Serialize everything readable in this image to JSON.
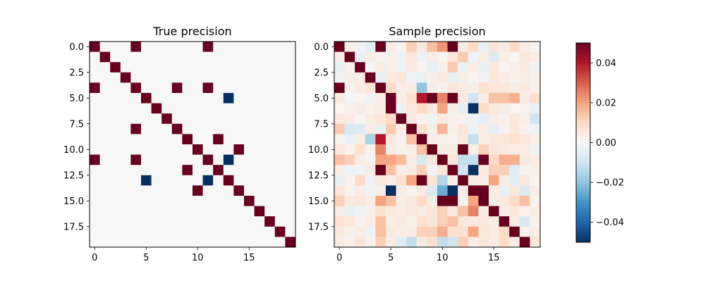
{
  "chart_data": [
    {
      "type": "heatmap",
      "title": "True precision",
      "n": 20,
      "xticks": [
        0,
        5,
        10,
        15
      ],
      "xtick_labels": [
        "0",
        "5",
        "10",
        "15"
      ],
      "yticks": [
        0,
        2.5,
        5,
        7.5,
        10,
        12.5,
        15,
        17.5
      ],
      "ytick_labels": [
        "0.0",
        "2.5",
        "5.0",
        "7.5",
        "10.0",
        "12.5",
        "15.0",
        "17.5"
      ],
      "vmin": -0.05,
      "vmax": 0.05,
      "values": [
        [
          0.05,
          0,
          0,
          0,
          0.05,
          0,
          0,
          0,
          0,
          0,
          0,
          0.05,
          0,
          0,
          0,
          0,
          0,
          0,
          0,
          0
        ],
        [
          0,
          0.05,
          0,
          0,
          0,
          0,
          0,
          0,
          0,
          0,
          0,
          0,
          0,
          0,
          0,
          0,
          0,
          0,
          0,
          0
        ],
        [
          0,
          0,
          0.05,
          0,
          0,
          0,
          0,
          0,
          0,
          0,
          0,
          0,
          0,
          0,
          0,
          0,
          0,
          0,
          0,
          0
        ],
        [
          0,
          0,
          0,
          0.05,
          0,
          0,
          0,
          0,
          0,
          0,
          0,
          0,
          0,
          0,
          0,
          0,
          0,
          0,
          0,
          0
        ],
        [
          0.05,
          0,
          0,
          0,
          0.05,
          0,
          0,
          0,
          0.05,
          0,
          0,
          0.05,
          0,
          0,
          0,
          0,
          0,
          0,
          0,
          0
        ],
        [
          0,
          0,
          0,
          0,
          0,
          0.05,
          0,
          0,
          0,
          0,
          0,
          0,
          0,
          -0.05,
          0,
          0,
          0,
          0,
          0,
          0
        ],
        [
          0,
          0,
          0,
          0,
          0,
          0,
          0.05,
          0,
          0,
          0,
          0,
          0,
          0,
          0,
          0,
          0,
          0,
          0,
          0,
          0
        ],
        [
          0,
          0,
          0,
          0,
          0,
          0,
          0,
          0.05,
          0,
          0,
          0,
          0,
          0,
          0,
          0,
          0,
          0,
          0,
          0,
          0
        ],
        [
          0,
          0,
          0,
          0,
          0.05,
          0,
          0,
          0,
          0.05,
          0,
          0,
          0,
          0,
          0,
          0,
          0,
          0,
          0,
          0,
          0
        ],
        [
          0,
          0,
          0,
          0,
          0,
          0,
          0,
          0,
          0,
          0.05,
          0,
          0,
          0.05,
          0,
          0,
          0,
          0,
          0,
          0,
          0
        ],
        [
          0,
          0,
          0,
          0,
          0,
          0,
          0,
          0,
          0,
          0,
          0.05,
          0,
          0,
          0,
          0.05,
          0,
          0,
          0,
          0,
          0
        ],
        [
          0.05,
          0,
          0,
          0,
          0.05,
          0,
          0,
          0,
          0,
          0,
          0,
          0.05,
          0,
          -0.05,
          0,
          0,
          0,
          0,
          0,
          0
        ],
        [
          0,
          0,
          0,
          0,
          0,
          0,
          0,
          0,
          0,
          0.05,
          0,
          0,
          0.05,
          0,
          0,
          0,
          0,
          0,
          0,
          0
        ],
        [
          0,
          0,
          0,
          0,
          0,
          -0.05,
          0,
          0,
          0,
          0,
          0,
          -0.05,
          0,
          0.05,
          0,
          0,
          0,
          0,
          0,
          0
        ],
        [
          0,
          0,
          0,
          0,
          0,
          0,
          0,
          0,
          0,
          0,
          0.05,
          0,
          0,
          0,
          0.05,
          0,
          0,
          0,
          0,
          0
        ],
        [
          0,
          0,
          0,
          0,
          0,
          0,
          0,
          0,
          0,
          0,
          0,
          0,
          0,
          0,
          0,
          0.05,
          0,
          0,
          0,
          0
        ],
        [
          0,
          0,
          0,
          0,
          0,
          0,
          0,
          0,
          0,
          0,
          0,
          0,
          0,
          0,
          0,
          0,
          0.05,
          0,
          0,
          0
        ],
        [
          0,
          0,
          0,
          0,
          0,
          0,
          0,
          0,
          0,
          0,
          0,
          0,
          0,
          0,
          0,
          0,
          0,
          0.05,
          0,
          0
        ],
        [
          0,
          0,
          0,
          0,
          0,
          0,
          0,
          0,
          0,
          0,
          0,
          0,
          0,
          0,
          0,
          0,
          0,
          0,
          0.05,
          0
        ],
        [
          0,
          0,
          0,
          0,
          0,
          0,
          0,
          0,
          0,
          0,
          0,
          0,
          0,
          0,
          0,
          0,
          0,
          0,
          0,
          0.05
        ]
      ]
    },
    {
      "type": "heatmap",
      "title": "Sample precision",
      "n": 20,
      "xticks": [
        0,
        5,
        10,
        15
      ],
      "xtick_labels": [
        "0",
        "5",
        "10",
        "15"
      ],
      "yticks": [
        0,
        2.5,
        5,
        7.5,
        10,
        12.5,
        15,
        17.5
      ],
      "ytick_labels": [
        "0.0",
        "2.5",
        "5.0",
        "7.5",
        "10.0",
        "12.5",
        "15.0",
        "17.5"
      ],
      "vmin": -0.05,
      "vmax": 0.05,
      "values": [
        [
          0.05,
          0.003,
          -0.002,
          -0.005,
          0.05,
          0.004,
          0.001,
          0.012,
          0.005,
          0.015,
          0.022,
          0.05,
          0.004,
          0.01,
          -0.004,
          0.006,
          0.004,
          0.01,
          0.004,
          0.001
        ],
        [
          0.003,
          0.05,
          -0.004,
          0.004,
          0.002,
          0.003,
          -0.003,
          0.006,
          -0.003,
          0.004,
          0.001,
          0.006,
          0.013,
          -0.002,
          0.004,
          -0.007,
          0.003,
          0.001,
          0.006,
          0.004
        ],
        [
          -0.004,
          0.002,
          0.05,
          -0.001,
          0.004,
          0.003,
          -0.002,
          0.005,
          0.001,
          -0.004,
          0.003,
          0.013,
          -0.004,
          0.004,
          -0.004,
          0.006,
          0.001,
          0.003,
          0.005,
          -0.002
        ],
        [
          -0.002,
          0.004,
          0.004,
          0.05,
          -0.004,
          0.005,
          0.006,
          -0.002,
          -0.004,
          0.003,
          0.005,
          -0.004,
          0.004,
          0.001,
          -0.002,
          0.006,
          0.004,
          0.002,
          0.004,
          0.003
        ],
        [
          0.05,
          0.002,
          0.004,
          0.006,
          0.05,
          0.01,
          0.004,
          0.004,
          -0.02,
          0.004,
          0.002,
          0.006,
          0.004,
          0.003,
          0.008,
          0.006,
          0.006,
          0.004,
          0.005,
          0.002
        ],
        [
          0.004,
          -0.001,
          0.001,
          -0.002,
          0.004,
          0.05,
          0.004,
          0.008,
          0.04,
          0.05,
          0.025,
          0.05,
          0.005,
          -0.01,
          0.004,
          0.015,
          0.015,
          0.018,
          0.004,
          0.008
        ],
        [
          0.001,
          0.003,
          0.004,
          0.002,
          0.004,
          0.05,
          -0.003,
          0.006,
          0.01,
          0.005,
          0.02,
          0.003,
          -0.005,
          -0.05,
          0.01,
          0.005,
          0.004,
          0.001,
          0.002,
          -0.004
        ],
        [
          0.005,
          0.004,
          0.001,
          0.004,
          0.006,
          0.01,
          0.05,
          0.005,
          0.002,
          -0.002,
          0.005,
          0.003,
          0.002,
          -0.002,
          -0.005,
          0.004,
          0.002,
          0.006,
          0.003,
          -0.01
        ],
        [
          0.013,
          -0.008,
          -0.007,
          0.004,
          -0.004,
          0.013,
          0.004,
          0.05,
          0.008,
          0.003,
          0.017,
          0.003,
          0.006,
          -0.003,
          0.004,
          -0.005,
          0.002,
          0.006,
          0.002,
          -0.002
        ],
        [
          0.002,
          -0.004,
          0.004,
          -0.016,
          0.04,
          0.005,
          0.002,
          0.015,
          0.05,
          0.004,
          0.003,
          0.002,
          0.006,
          -0.012,
          0.004,
          0.006,
          0.006,
          0.008,
          0.006,
          0.003
        ],
        [
          0.006,
          0.002,
          0.008,
          0.002,
          0.025,
          0.004,
          0.002,
          0.003,
          0.015,
          0.05,
          0.004,
          0.004,
          0.05,
          0.003,
          0.012,
          0.006,
          0.005,
          0.004,
          0.004,
          -0.002
        ],
        [
          0.015,
          0.012,
          0.004,
          0.002,
          0.02,
          0.02,
          0.016,
          0.004,
          -0.008,
          0.006,
          0.05,
          0.006,
          -0.012,
          -0.012,
          0.05,
          0.01,
          0.018,
          0.018,
          0.005,
          0.004
        ],
        [
          0.004,
          -0.003,
          -0.002,
          0.004,
          0.05,
          0.015,
          0.004,
          0.004,
          0.012,
          -0.002,
          0.006,
          0.05,
          -0.01,
          -0.05,
          0.005,
          0.012,
          0.012,
          -0.006,
          0.002,
          0.003
        ],
        [
          -0.004,
          0.002,
          0.01,
          -0.003,
          0.005,
          0.004,
          0.008,
          0.02,
          0.05,
          0.007,
          -0.015,
          0.003,
          0.05,
          0.004,
          0.004,
          0.02,
          0.004,
          -0.006,
          0.006,
          0.001
        ],
        [
          0.006,
          0.001,
          0.004,
          -0.002,
          0.003,
          -0.05,
          0.004,
          0.002,
          0.004,
          -0.008,
          -0.025,
          -0.05,
          0.004,
          0.05,
          0.05,
          0.004,
          -0.004,
          0.006,
          -0.007,
          0.004
        ],
        [
          0.012,
          0.005,
          0.006,
          0.004,
          0.02,
          0.015,
          0.004,
          0.005,
          0.01,
          0.004,
          0.05,
          0.05,
          0.002,
          0.02,
          0.05,
          0.004,
          0.005,
          0.01,
          0.015,
          0.002
        ],
        [
          0.004,
          -0.004,
          -0.002,
          0.003,
          0.008,
          0.005,
          0.004,
          0.006,
          0.004,
          0.006,
          0.012,
          0.006,
          0.015,
          0.025,
          0.004,
          0.05,
          0.004,
          0.006,
          0.002,
          0.004
        ],
        [
          0.008,
          0.006,
          0.002,
          0.004,
          0.015,
          0.004,
          0.005,
          0.003,
          0.008,
          0.006,
          0.012,
          0.015,
          0.006,
          0.005,
          0.006,
          0.004,
          0.05,
          0.004,
          -0.008,
          0.002
        ],
        [
          0.005,
          0.003,
          0.004,
          -0.003,
          0.015,
          0.005,
          0.004,
          0.004,
          0.012,
          0.012,
          0.018,
          0.008,
          0.008,
          0.02,
          0.006,
          0.004,
          0.01,
          0.05,
          0.002,
          0.004
        ],
        [
          0.004,
          0.002,
          0.006,
          0.002,
          0.012,
          0.004,
          -0.006,
          -0.012,
          0.004,
          0.008,
          -0.012,
          -0.01,
          0.012,
          0.004,
          0.006,
          0.004,
          0.01,
          0.004,
          0.05,
          0.006
        ]
      ]
    }
  ],
  "colorbar": {
    "vmin": -0.05,
    "vmax": 0.05,
    "ticks": [
      0.04,
      0.02,
      0.0,
      -0.02,
      -0.04
    ],
    "tick_labels": [
      "0.04",
      "0.02",
      "0.00",
      "−0.02",
      "−0.04"
    ],
    "colormap": "RdBu_r"
  }
}
